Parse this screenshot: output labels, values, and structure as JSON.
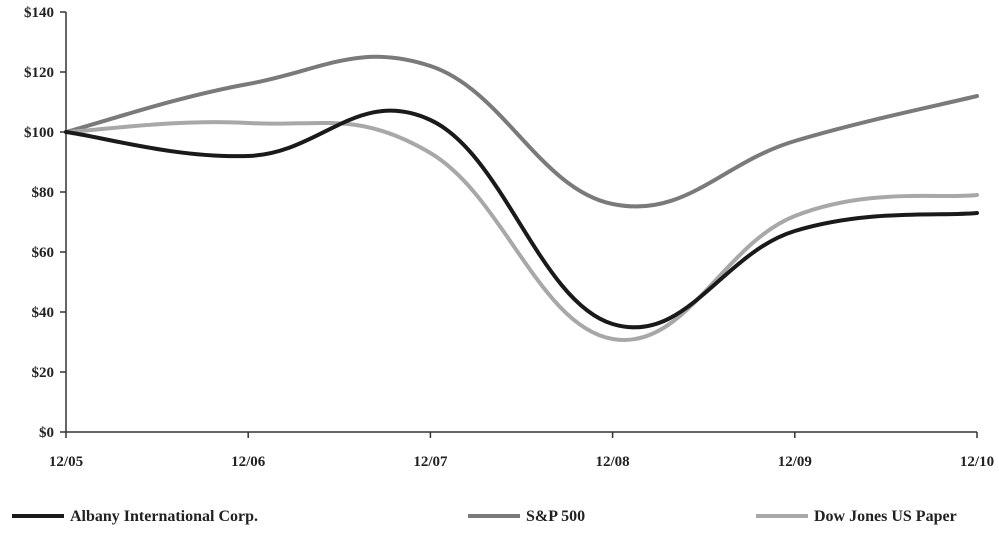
{
  "chart_data": {
    "type": "line",
    "title": "",
    "xlabel": "",
    "ylabel": "",
    "categories": [
      "12/05",
      "12/06",
      "12/07",
      "12/08",
      "12/09",
      "12/10"
    ],
    "y_ticks": [
      "$0",
      "$20",
      "$40",
      "$60",
      "$80",
      "$100",
      "$120",
      "$140"
    ],
    "y_tick_values": [
      0,
      20,
      40,
      60,
      80,
      100,
      120,
      140
    ],
    "ylim": [
      0,
      140
    ],
    "grid": false,
    "legend_position": "bottom",
    "series": [
      {
        "name": "Albany International Corp.",
        "color": "#1a1a1a",
        "values": [
          100,
          92,
          104,
          36,
          67,
          73
        ]
      },
      {
        "name": "S&P 500",
        "color": "#7a7a7a",
        "values": [
          100,
          116,
          122,
          76,
          97,
          112
        ]
      },
      {
        "name": "Dow Jones US Paper",
        "color": "#a8a8a8",
        "values": [
          100,
          103,
          93,
          31,
          72,
          79
        ]
      }
    ]
  }
}
